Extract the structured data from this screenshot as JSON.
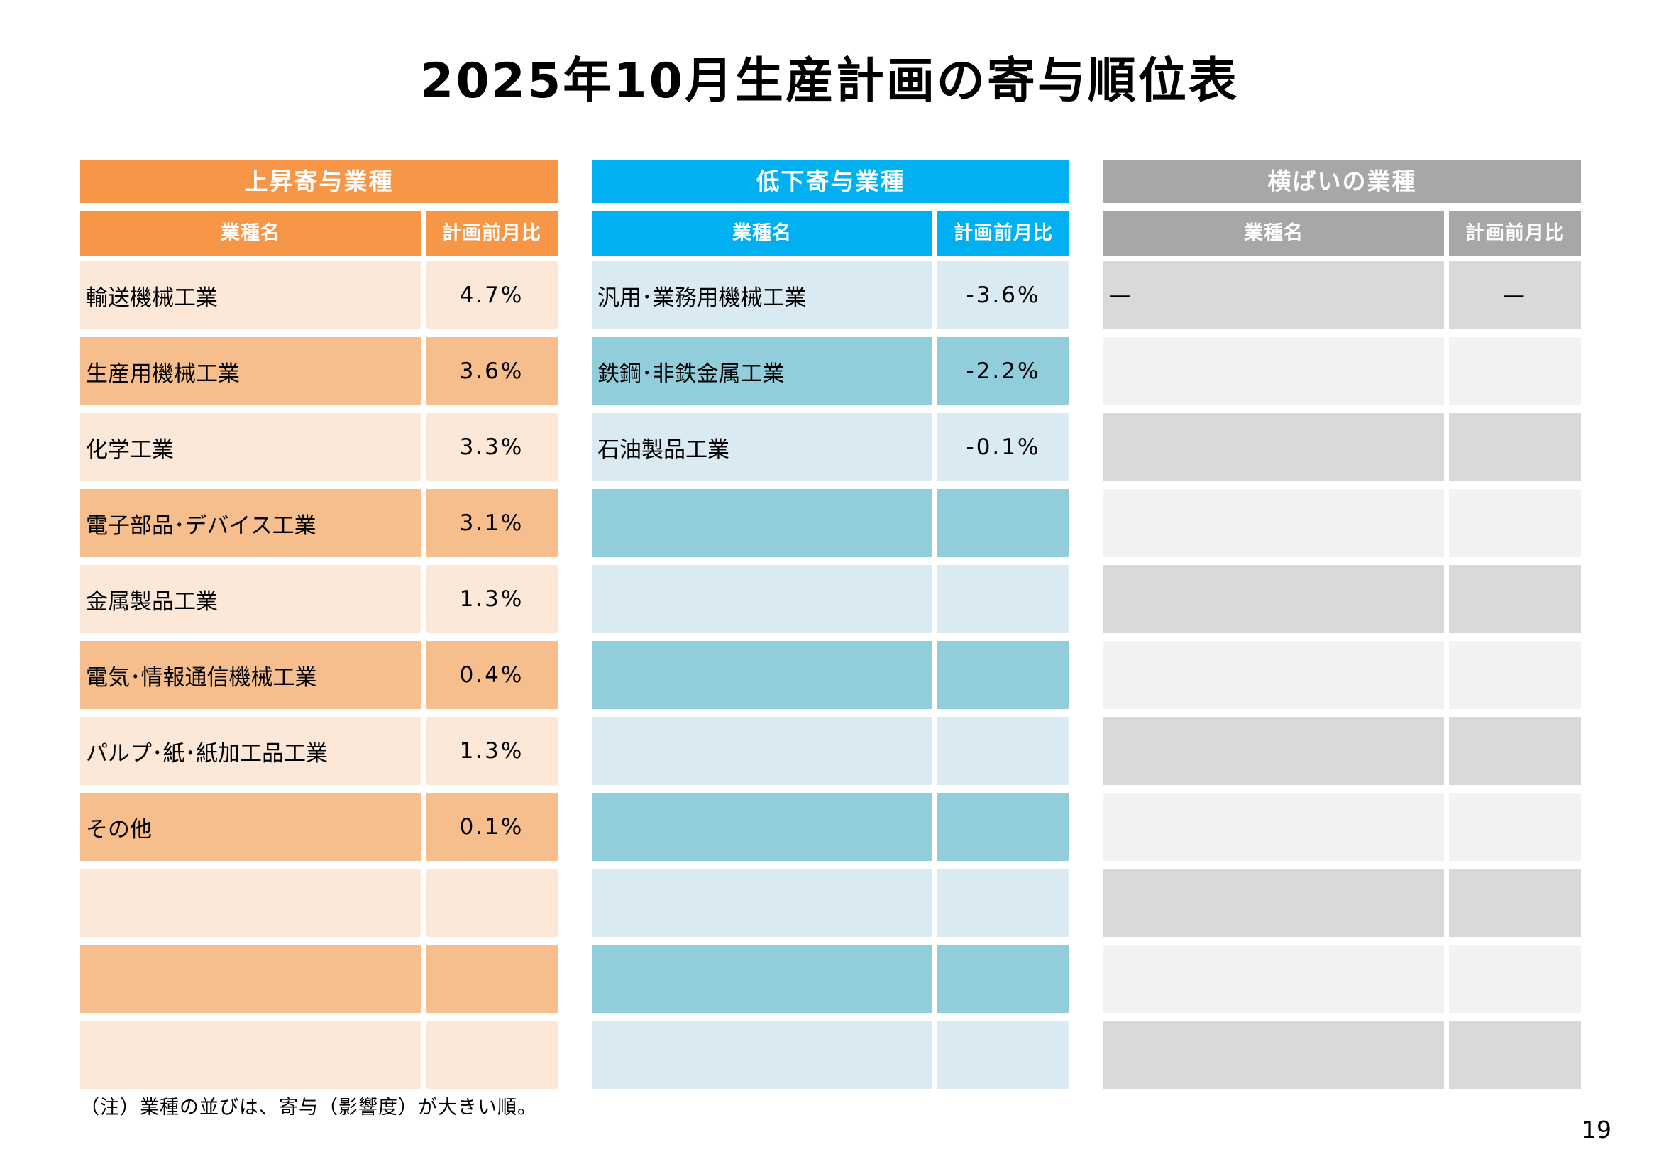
{
  "page": {
    "title": "2025年10月生産計画の寄与順位表",
    "note": "（注）業種の並びは、寄与（影響度）が大きい順。",
    "page_number": "19"
  },
  "tables": [
    {
      "title": "上昇寄与業種",
      "columns": {
        "name": "業種名",
        "value": "計画前月比"
      },
      "colors": {
        "header": "#F79646",
        "header_text": "#FFFFFF",
        "row_first": "#FCE8D9",
        "row_second": "#F6BE8C"
      },
      "rows": [
        {
          "name": "輸送機械工業",
          "value": "4.7%"
        },
        {
          "name": "生産用機械工業",
          "value": "3.6%"
        },
        {
          "name": "化学工業",
          "value": "3.3%"
        },
        {
          "name": "電子部品･デバイス工業",
          "value": "3.1%"
        },
        {
          "name": "金属製品工業",
          "value": "1.3%"
        },
        {
          "name": "電気･情報通信機械工業",
          "value": "0.4%"
        },
        {
          "name": "パルプ･紙･紙加工品工業",
          "value": "1.3%"
        },
        {
          "name": "その他",
          "value": "0.1%"
        },
        {
          "name": "",
          "value": ""
        },
        {
          "name": "",
          "value": ""
        },
        {
          "name": "",
          "value": ""
        }
      ]
    },
    {
      "title": "低下寄与業種",
      "columns": {
        "name": "業種名",
        "value": "計画前月比"
      },
      "colors": {
        "header": "#00B0F0",
        "header_text": "#FFFFFF",
        "row_first": "#D9EAF2",
        "row_second": "#92CDDC"
      },
      "rows": [
        {
          "name": "汎用･業務用機械工業",
          "value": "-3.6%"
        },
        {
          "name": "鉄鋼･非鉄金属工業",
          "value": "-2.2%"
        },
        {
          "name": "石油製品工業",
          "value": "-0.1%"
        },
        {
          "name": "",
          "value": ""
        },
        {
          "name": "",
          "value": ""
        },
        {
          "name": "",
          "value": ""
        },
        {
          "name": "",
          "value": ""
        },
        {
          "name": "",
          "value": ""
        },
        {
          "name": "",
          "value": ""
        },
        {
          "name": "",
          "value": ""
        },
        {
          "name": "",
          "value": ""
        }
      ]
    },
    {
      "title": "横ばいの業種",
      "columns": {
        "name": "業種名",
        "value": "計画前月比"
      },
      "colors": {
        "header": "#A7A7A7",
        "header_text": "#FFFFFF",
        "row_first": "#D9D9D9",
        "row_second": "#F2F2F2"
      },
      "rows": [
        {
          "name": "—",
          "value": "—"
        },
        {
          "name": "",
          "value": ""
        },
        {
          "name": "",
          "value": ""
        },
        {
          "name": "",
          "value": ""
        },
        {
          "name": "",
          "value": ""
        },
        {
          "name": "",
          "value": ""
        },
        {
          "name": "",
          "value": ""
        },
        {
          "name": "",
          "value": ""
        },
        {
          "name": "",
          "value": ""
        },
        {
          "name": "",
          "value": ""
        },
        {
          "name": "",
          "value": ""
        }
      ]
    }
  ]
}
